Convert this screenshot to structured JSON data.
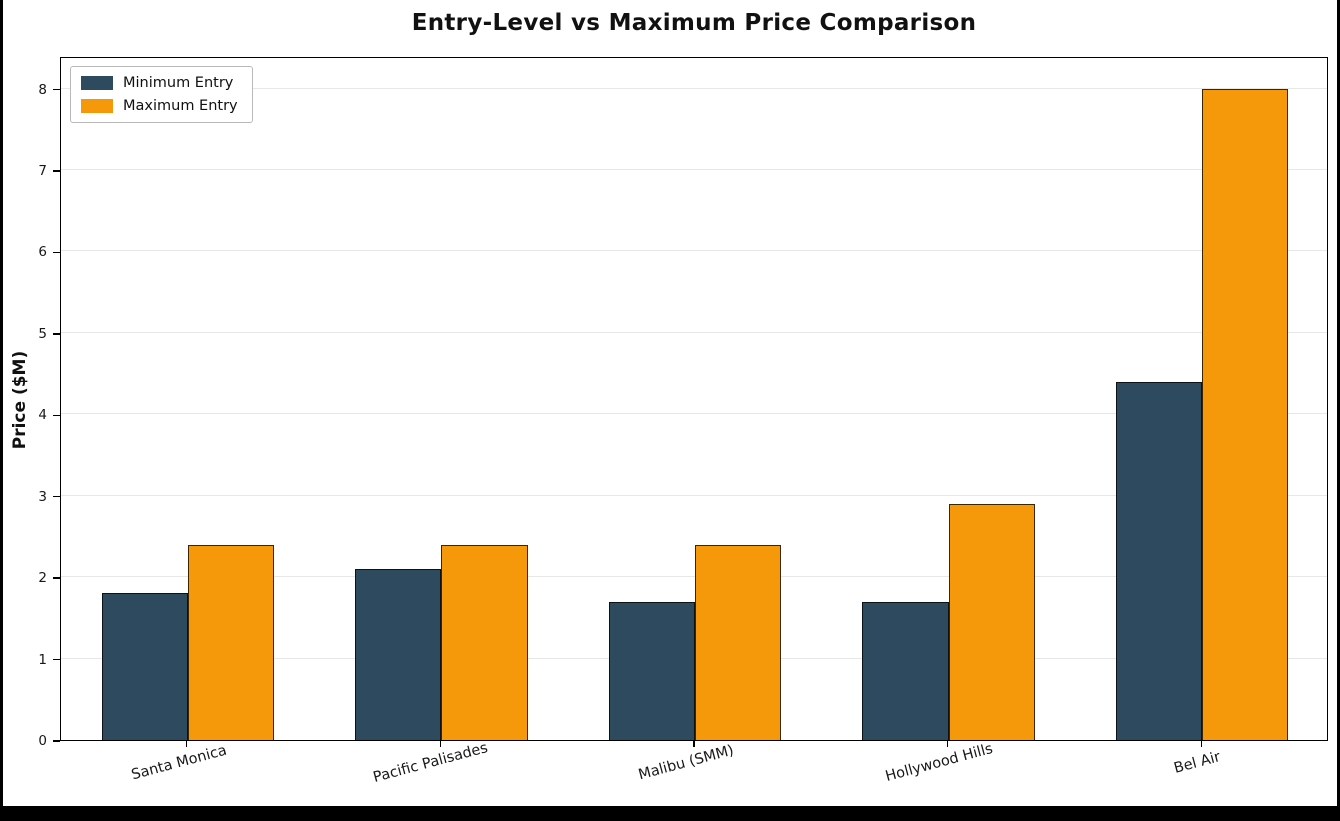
{
  "page": {
    "background": "#ffffff",
    "frame_color": "#000000"
  },
  "chart_data": {
    "type": "bar",
    "title": "Entry-Level vs Maximum Price Comparison",
    "xlabel": "",
    "ylabel": "Price ($M)",
    "categories": [
      "Santa Monica",
      "Pacific Palisades",
      "Malibu (SMM)",
      "Hollywood Hills",
      "Bel Air"
    ],
    "series": [
      {
        "name": "Minimum Entry",
        "color": "#2e4a5f",
        "values": [
          1.8,
          2.1,
          1.7,
          1.7,
          4.4
        ]
      },
      {
        "name": "Maximum Entry",
        "color": "#f5990b",
        "values": [
          2.4,
          2.4,
          2.4,
          2.9,
          8.0
        ]
      }
    ],
    "ylim": [
      0,
      8.4
    ],
    "yticks": [
      0,
      1,
      2,
      3,
      4,
      5,
      6,
      7,
      8
    ],
    "grid": "horizontal",
    "legend_position": "upper-left"
  }
}
